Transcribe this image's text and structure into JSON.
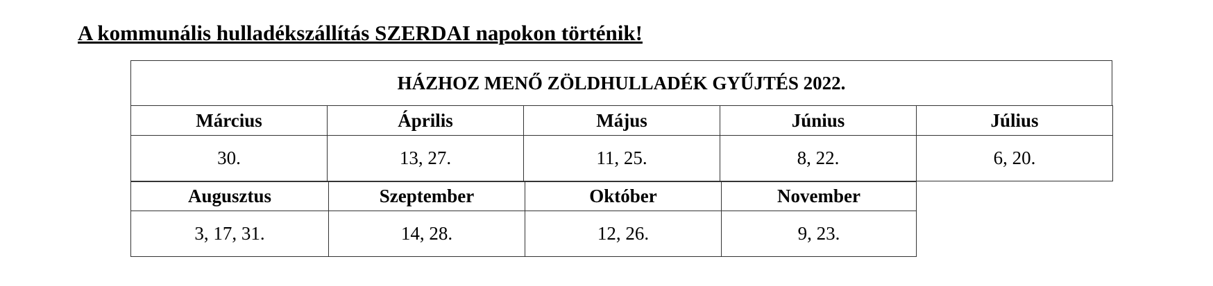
{
  "notice": "A kommunális hulladékszállítás SZERDAI napokon történik!",
  "table": {
    "title": "HÁZHOZ MENŐ ZÖLDHULLADÉK GYŰJTÉS 2022.",
    "row1": [
      {
        "month": "Március",
        "dates": "30."
      },
      {
        "month": "Április",
        "dates": "13, 27."
      },
      {
        "month": "Május",
        "dates": "11, 25."
      },
      {
        "month": "Június",
        "dates": "8, 22."
      },
      {
        "month": "Július",
        "dates": "6, 20."
      }
    ],
    "row2": [
      {
        "month": "Augusztus",
        "dates": "3, 17, 31."
      },
      {
        "month": "Szeptember",
        "dates": "14, 28."
      },
      {
        "month": "Október",
        "dates": "12, 26."
      },
      {
        "month": "November",
        "dates": "9, 23."
      }
    ]
  }
}
